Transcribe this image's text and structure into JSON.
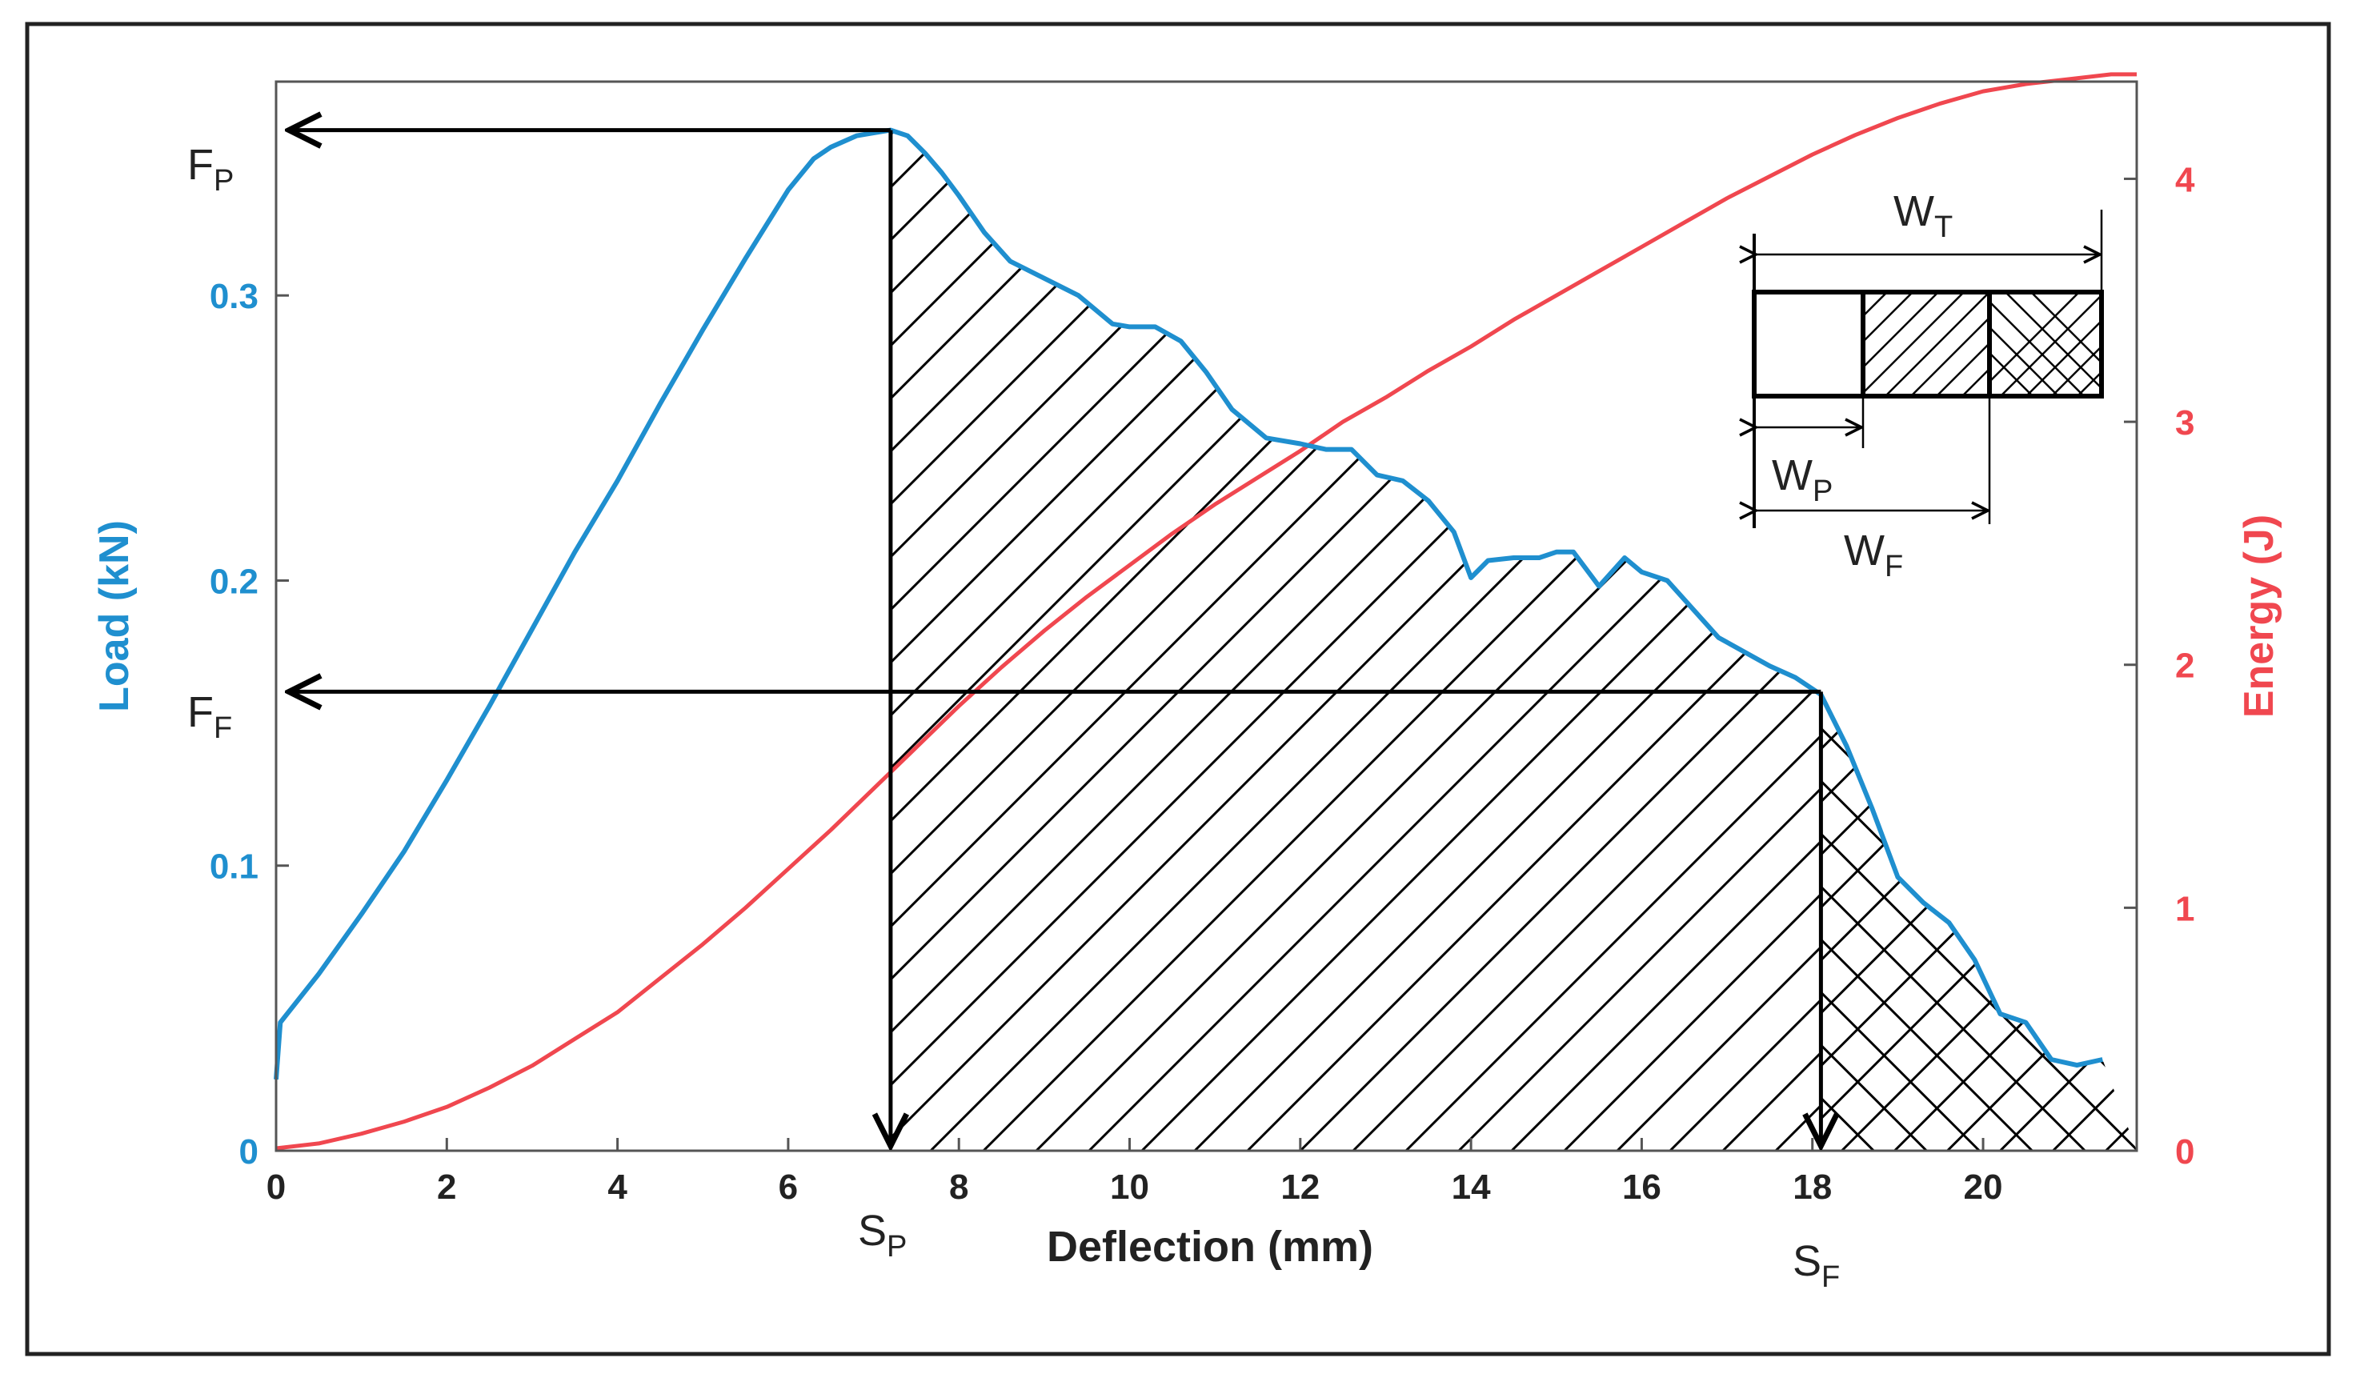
{
  "chart_data": {
    "type": "line",
    "xlabel": "Deflection (mm)",
    "ylabel_left": "Load (kN)",
    "ylabel_right": "Energy (J)",
    "xlim": [
      0,
      21.8
    ],
    "ylim_left": [
      0,
      0.375
    ],
    "ylim_right": [
      0,
      4.4
    ],
    "x_ticks": [
      0,
      2,
      4,
      6,
      8,
      10,
      12,
      14,
      16,
      18,
      20
    ],
    "y_left_ticks": [
      0,
      0.1,
      0.2,
      0.3
    ],
    "y_left_tick_labels": [
      "0",
      "0.1",
      "0.2",
      "0.3"
    ],
    "y_right_ticks": [
      0,
      1,
      2,
      3,
      4
    ],
    "colors": {
      "load": "#1f8fcf",
      "energy": "#f0474f",
      "axis": "#222222"
    },
    "series": [
      {
        "name": "Load",
        "axis": "left",
        "x": [
          0,
          0.05,
          0.5,
          1,
          1.5,
          2,
          2.5,
          3,
          3.5,
          4,
          4.5,
          5,
          5.5,
          6,
          6.3,
          6.5,
          6.8,
          7.0,
          7.2,
          7.4,
          7.6,
          7.8,
          8.0,
          8.3,
          8.6,
          9.0,
          9.4,
          9.8,
          10.0,
          10.3,
          10.6,
          10.9,
          11.2,
          11.6,
          12.0,
          12.3,
          12.6,
          12.9,
          13.2,
          13.5,
          13.8,
          14.0,
          14.2,
          14.5,
          14.8,
          15.0,
          15.2,
          15.5,
          15.8,
          16.0,
          16.3,
          16.6,
          16.9,
          17.2,
          17.5,
          17.8,
          18.1,
          18.4,
          18.7,
          19.0,
          19.3,
          19.6,
          19.9,
          20.2,
          20.5,
          20.8,
          21.1,
          21.4
        ],
        "y": [
          0.025,
          0.045,
          0.062,
          0.083,
          0.105,
          0.13,
          0.156,
          0.183,
          0.21,
          0.235,
          0.262,
          0.288,
          0.313,
          0.337,
          0.348,
          0.352,
          0.356,
          0.357,
          0.358,
          0.356,
          0.35,
          0.343,
          0.335,
          0.322,
          0.312,
          0.306,
          0.3,
          0.29,
          0.289,
          0.289,
          0.284,
          0.273,
          0.26,
          0.25,
          0.248,
          0.246,
          0.246,
          0.237,
          0.235,
          0.228,
          0.217,
          0.201,
          0.207,
          0.208,
          0.208,
          0.21,
          0.21,
          0.198,
          0.208,
          0.203,
          0.2,
          0.19,
          0.18,
          0.175,
          0.17,
          0.166,
          0.16,
          0.142,
          0.12,
          0.096,
          0.087,
          0.08,
          0.067,
          0.048,
          0.045,
          0.032,
          0.03,
          0.032
        ]
      },
      {
        "name": "Energy",
        "axis": "right",
        "x": [
          0,
          0.5,
          1,
          1.5,
          2,
          2.5,
          3,
          3.5,
          4,
          4.5,
          5,
          5.5,
          6,
          6.5,
          7,
          7.5,
          8,
          8.5,
          9,
          9.5,
          10,
          10.5,
          11,
          11.5,
          12,
          12.5,
          13,
          13.5,
          14,
          14.5,
          15,
          15.5,
          16,
          16.5,
          17,
          17.5,
          18,
          18.5,
          19,
          19.5,
          20,
          20.5,
          21,
          21.5,
          21.8
        ],
        "y": [
          0.01,
          0.03,
          0.07,
          0.12,
          0.18,
          0.26,
          0.35,
          0.46,
          0.57,
          0.71,
          0.85,
          1.0,
          1.16,
          1.32,
          1.49,
          1.66,
          1.83,
          1.99,
          2.14,
          2.28,
          2.41,
          2.54,
          2.66,
          2.77,
          2.88,
          3.0,
          3.1,
          3.21,
          3.31,
          3.42,
          3.52,
          3.62,
          3.72,
          3.82,
          3.92,
          4.01,
          4.1,
          4.18,
          4.25,
          4.31,
          4.36,
          4.39,
          4.41,
          4.43,
          4.43
        ]
      }
    ],
    "annotations": {
      "fp_label": "F",
      "fp_sub": "P",
      "ff_label": "F",
      "ff_sub": "F",
      "sp_label": "S",
      "sp_sub": "P",
      "sf_label": "S",
      "sf_sub": "F",
      "wt_label": "W",
      "wt_sub": "T",
      "wp_label": "W",
      "wp_sub": "P",
      "wf_label": "W",
      "wf_sub": "F"
    },
    "markers": {
      "sp_x": 7.2,
      "sf_x": 18.1,
      "fp_y": 0.358,
      "ff_y": 0.161
    }
  }
}
